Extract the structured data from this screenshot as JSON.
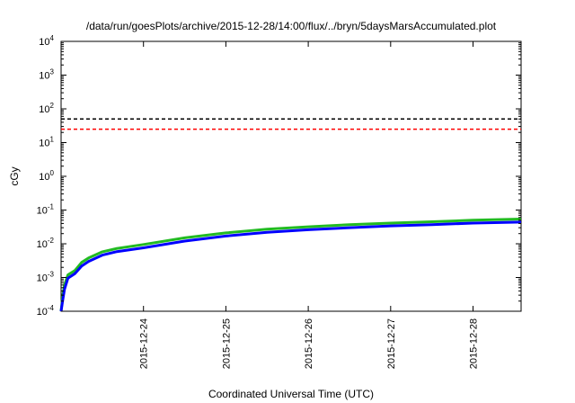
{
  "chart_data": {
    "type": "line",
    "title": "/data/run/goesPlots/archive/2015-12-28/14:00/flux/../bryn/5daysMarsAccumulated.plot",
    "xlabel": "Coordinated Universal Time (UTC)",
    "ylabel": "cGy",
    "y_scale": "log",
    "ylim_exp": [
      -4,
      4
    ],
    "y_ticks": [
      {
        "base": "10",
        "exp": "-4",
        "value": 0.0001
      },
      {
        "base": "10",
        "exp": "-3",
        "value": 0.001
      },
      {
        "base": "10",
        "exp": "-2",
        "value": 0.01
      },
      {
        "base": "10",
        "exp": "-1",
        "value": 0.1
      },
      {
        "base": "10",
        "exp": "0",
        "value": 1
      },
      {
        "base": "10",
        "exp": "1",
        "value": 10
      },
      {
        "base": "10",
        "exp": "2",
        "value": 100
      },
      {
        "base": "10",
        "exp": "3",
        "value": 1000
      },
      {
        "base": "10",
        "exp": "4",
        "value": 10000
      }
    ],
    "xlim": [
      "2015-12-23T00:00",
      "2015-12-28T14:00"
    ],
    "x_ticks": [
      "2015-12-24",
      "2015-12-25",
      "2015-12-26",
      "2015-12-27",
      "2015-12-28"
    ],
    "grid": false,
    "hlines": [
      {
        "value": 50,
        "color": "#000000",
        "style": "dashed"
      },
      {
        "value": 25,
        "color": "#ff0000",
        "style": "dashed"
      }
    ],
    "series": [
      {
        "color": "#22bb22",
        "x": [
          "2015-12-23T00:00",
          "2015-12-23T00:30",
          "2015-12-23T01:00",
          "2015-12-23T02:00",
          "2015-12-23T04:00",
          "2015-12-23T06:00",
          "2015-12-23T08:00",
          "2015-12-23T12:00",
          "2015-12-23T16:00",
          "2015-12-24T00:00",
          "2015-12-24T12:00",
          "2015-12-25T00:00",
          "2015-12-25T12:00",
          "2015-12-26T00:00",
          "2015-12-26T12:00",
          "2015-12-27T00:00",
          "2015-12-27T12:00",
          "2015-12-28T00:00",
          "2015-12-28T14:00"
        ],
        "y": [
          0.0001,
          0.0003,
          0.0006,
          0.0012,
          0.0016,
          0.0028,
          0.0038,
          0.0058,
          0.0072,
          0.0095,
          0.015,
          0.021,
          0.027,
          0.032,
          0.037,
          0.041,
          0.045,
          0.05,
          0.054
        ]
      },
      {
        "color": "#0000ff",
        "x": [
          "2015-12-23T00:00",
          "2015-12-23T00:30",
          "2015-12-23T01:00",
          "2015-12-23T02:00",
          "2015-12-23T04:00",
          "2015-12-23T06:00",
          "2015-12-23T08:00",
          "2015-12-23T12:00",
          "2015-12-23T16:00",
          "2015-12-24T00:00",
          "2015-12-24T12:00",
          "2015-12-25T00:00",
          "2015-12-25T12:00",
          "2015-12-26T00:00",
          "2015-12-26T12:00",
          "2015-12-27T00:00",
          "2015-12-27T12:00",
          "2015-12-28T00:00",
          "2015-12-28T14:00"
        ],
        "y": [
          0.0001,
          0.00022,
          0.00045,
          0.00095,
          0.0013,
          0.0022,
          0.003,
          0.0046,
          0.0058,
          0.0076,
          0.012,
          0.017,
          0.022,
          0.026,
          0.03,
          0.034,
          0.037,
          0.041,
          0.044
        ]
      }
    ]
  }
}
